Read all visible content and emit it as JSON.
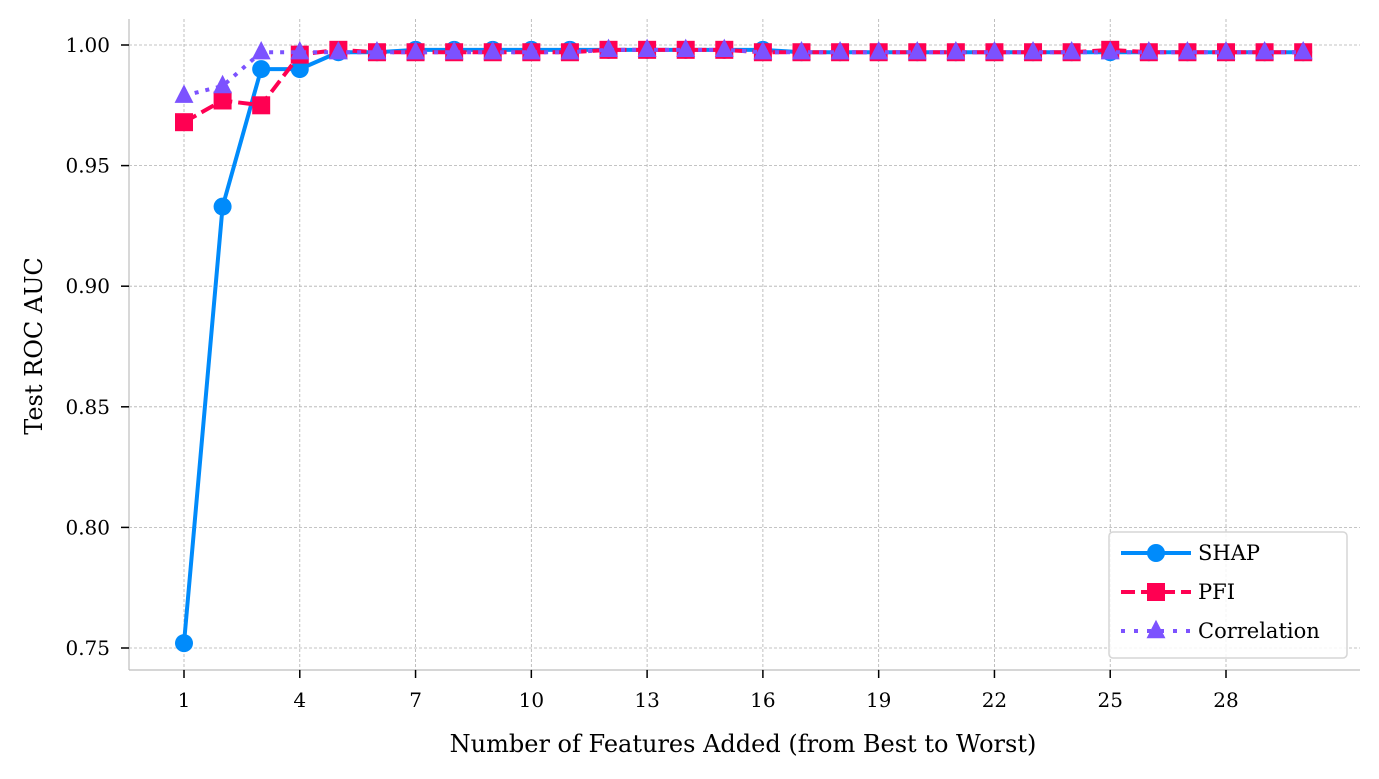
{
  "chart_data": {
    "type": "line",
    "title": "",
    "xlabel": "Number of Features Added (from Best to Worst)",
    "ylabel": "Test ROC AUC",
    "x": [
      1,
      2,
      3,
      4,
      5,
      6,
      7,
      8,
      9,
      10,
      11,
      12,
      13,
      14,
      15,
      16,
      17,
      18,
      19,
      20,
      21,
      22,
      23,
      24,
      25,
      26,
      27,
      28,
      29,
      30
    ],
    "xticks": [
      1,
      4,
      7,
      10,
      13,
      16,
      19,
      22,
      25,
      28
    ],
    "yticks": [
      0.75,
      0.8,
      0.85,
      0.9,
      0.95,
      1.0
    ],
    "ytick_labels": [
      "0.75",
      "0.80",
      "0.85",
      "0.90",
      "0.95",
      "1.00"
    ],
    "xlim": [
      -0.4,
      32.4
    ],
    "ylim": [
      0.74,
      1.011
    ],
    "grid": true,
    "legend_position": "lower right",
    "series": [
      {
        "name": "SHAP",
        "color": "#008bfb",
        "marker": "circle",
        "linestyle": "solid",
        "values": [
          0.752,
          0.933,
          0.99,
          0.99,
          0.997,
          0.997,
          0.998,
          0.998,
          0.998,
          0.998,
          0.998,
          0.998,
          0.998,
          0.998,
          0.998,
          0.998,
          0.997,
          0.997,
          0.997,
          0.997,
          0.997,
          0.997,
          0.997,
          0.997,
          0.997,
          0.997,
          0.997,
          0.997,
          0.997,
          0.997
        ]
      },
      {
        "name": "PFI",
        "color": "#ff0052",
        "marker": "square",
        "linestyle": "dashed",
        "values": [
          0.968,
          0.977,
          0.975,
          0.996,
          0.998,
          0.997,
          0.997,
          0.997,
          0.997,
          0.997,
          0.997,
          0.998,
          0.998,
          0.998,
          0.998,
          0.997,
          0.997,
          0.997,
          0.997,
          0.997,
          0.997,
          0.997,
          0.997,
          0.997,
          0.998,
          0.997,
          0.997,
          0.997,
          0.997,
          0.997
        ]
      },
      {
        "name": "Correlation",
        "color": "#7c52ff",
        "marker": "triangle",
        "linestyle": "dotted",
        "values": [
          0.979,
          0.983,
          0.997,
          0.997,
          0.997,
          0.997,
          0.997,
          0.997,
          0.997,
          0.997,
          0.997,
          0.998,
          0.998,
          0.998,
          0.998,
          0.997,
          0.997,
          0.997,
          0.997,
          0.997,
          0.997,
          0.997,
          0.997,
          0.997,
          0.997,
          0.997,
          0.997,
          0.997,
          0.997,
          0.997
        ]
      }
    ]
  }
}
